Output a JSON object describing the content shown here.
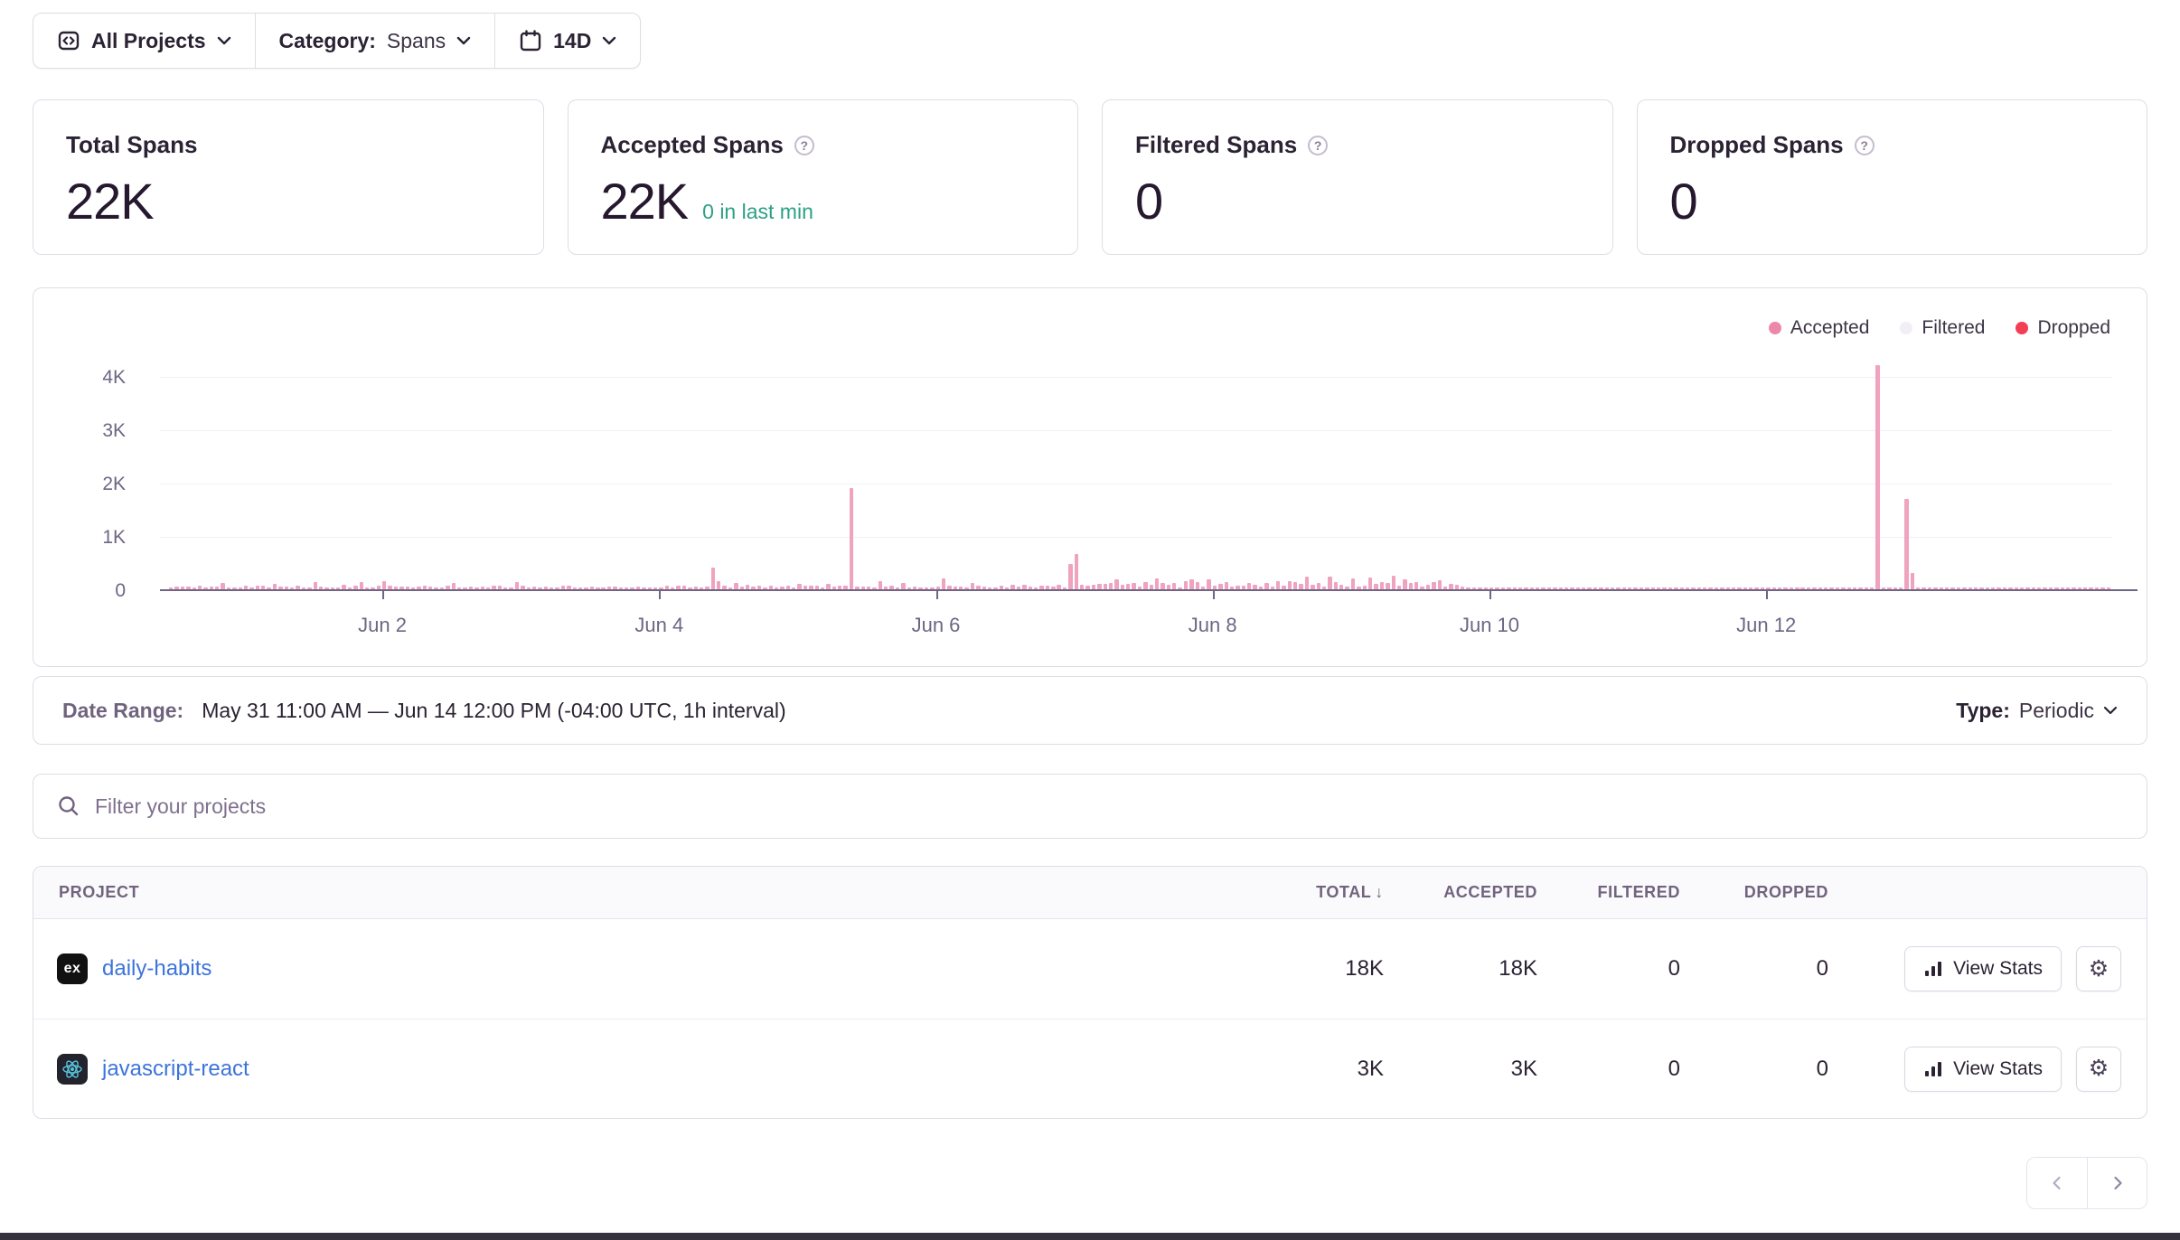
{
  "toolbar": {
    "projects_label": "All Projects",
    "category_label": "Category:",
    "category_value": "Spans",
    "period_value": "14D"
  },
  "stat_cards": [
    {
      "title": "Total Spans",
      "value": "22K",
      "note": ""
    },
    {
      "title": "Accepted Spans",
      "value": "22K",
      "note": "0 in last min"
    },
    {
      "title": "Filtered Spans",
      "value": "0",
      "note": ""
    },
    {
      "title": "Dropped Spans",
      "value": "0",
      "note": ""
    }
  ],
  "chart_legend": [
    {
      "label": "Accepted",
      "color": "#ed87ac"
    },
    {
      "label": "Filtered",
      "color": "#f2eef6"
    },
    {
      "label": "Dropped",
      "color": "#f43e54"
    }
  ],
  "chart_data": {
    "type": "bar",
    "title": "Accepted spans per hour",
    "interval": "1h",
    "x_start": "May 31 11:00 AM",
    "x_end": "Jun 14 12:00 PM",
    "hours_total": 337,
    "x_tick_labels": [
      "Jun 2",
      "Jun 4",
      "Jun 6",
      "Jun 8",
      "Jun 10",
      "Jun 12"
    ],
    "x_tick_hours": [
      37,
      85,
      133,
      181,
      229,
      277
    ],
    "y_tick_labels": [
      "0",
      "1K",
      "2K",
      "3K",
      "4K"
    ],
    "y_tick_values": [
      0,
      1000,
      2000,
      3000,
      4000
    ],
    "ylim": [
      0,
      4300
    ],
    "legend_position": "top-right",
    "grid": true,
    "series": [
      {
        "name": "Accepted",
        "spikes": {
          "94": 400,
          "95": 150,
          "118": 1900,
          "156": 480,
          "157": 660,
          "296": 4200,
          "301": 1700,
          "302": 300
        },
        "noise_segments": [
          {
            "from": 0,
            "to": 93,
            "min": 12,
            "max": 75,
            "peak_chance": 0.14,
            "peak_min": 90,
            "peak_max": 160
          },
          {
            "from": 96,
            "to": 117,
            "min": 15,
            "max": 80,
            "peak_chance": 0.14,
            "peak_min": 100,
            "peak_max": 190
          },
          {
            "from": 119,
            "to": 155,
            "min": 15,
            "max": 85,
            "peak_chance": 0.15,
            "peak_min": 110,
            "peak_max": 210
          },
          {
            "from": 158,
            "to": 224,
            "min": 35,
            "max": 150,
            "peak_chance": 0.18,
            "peak_min": 150,
            "peak_max": 260
          },
          {
            "from": 225,
            "to": 295,
            "min": 10,
            "max": 26,
            "peak_chance": 0,
            "peak_min": 0,
            "peak_max": 0
          },
          {
            "from": 297,
            "to": 300,
            "min": 15,
            "max": 40,
            "peak_chance": 0,
            "peak_min": 0,
            "peak_max": 0
          },
          {
            "from": 303,
            "to": 336,
            "min": 12,
            "max": 32,
            "peak_chance": 0,
            "peak_min": 0,
            "peak_max": 0
          }
        ]
      },
      {
        "name": "Filtered",
        "values_all_hours": 0
      },
      {
        "name": "Dropped",
        "values_all_hours": 0
      }
    ]
  },
  "date_bar": {
    "label": "Date Range:",
    "value": "May 31 11:00 AM — Jun 14 12:00 PM (-04:00 UTC, 1h interval)",
    "type_label": "Type:",
    "type_value": "Periodic"
  },
  "filter": {
    "placeholder": "Filter your projects"
  },
  "table": {
    "headers": {
      "project": "PROJECT",
      "total": "TOTAL",
      "accepted": "ACCEPTED",
      "filtered": "FILTERED",
      "dropped": "DROPPED"
    },
    "sort": {
      "column": "TOTAL",
      "direction": "desc"
    },
    "view_stats_label": "View Stats",
    "rows": [
      {
        "platform": "express",
        "platform_badge": "ex",
        "name": "daily-habits",
        "total": "18K",
        "accepted": "18K",
        "filtered": "0",
        "dropped": "0"
      },
      {
        "platform": "react",
        "platform_badge": "",
        "name": "javascript-react",
        "total": "3K",
        "accepted": "3K",
        "filtered": "0",
        "dropped": "0"
      }
    ]
  },
  "colors": {
    "bar_pink": "#efa3be",
    "dropped_red": "#f43e54",
    "note_green": "#2ba185",
    "link_blue": "#3c74db",
    "axis_text": "#6e6684",
    "border": "#e0dce5"
  }
}
